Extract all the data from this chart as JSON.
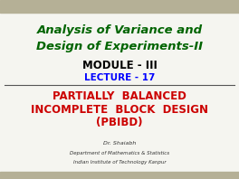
{
  "bg_color": "#f5f5f0",
  "top_bar_color": "#b5b096",
  "bottom_bar_color": "#b5b096",
  "title_line1": "Analysis of Variance and",
  "title_line2": "Design of Experiments-II",
  "title_color": "#006400",
  "module_text": "MODULE - III",
  "module_color": "#000000",
  "lecture_text": "LECTURE - 17",
  "lecture_color": "#0000ff",
  "pbibd_line1": "PARTIALLY  BALANCED",
  "pbibd_line2": "INCOMPLETE  BLOCK  DESIGN",
  "pbibd_line3": "(PBIBD)",
  "pbibd_color": "#cc0000",
  "author": "Dr. Shaiabh",
  "dept": "Department of Mathematics & Statistics",
  "institute": "Indian Institute of Technology Kanpur",
  "footer_color": "#333333",
  "divider_color": "#555555"
}
